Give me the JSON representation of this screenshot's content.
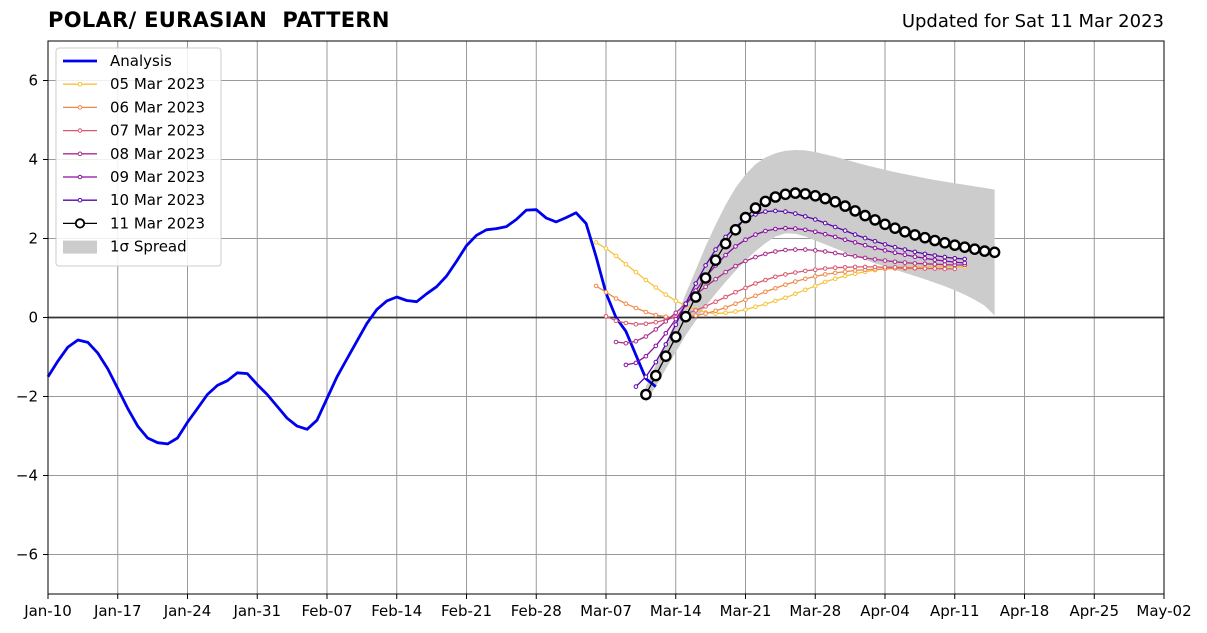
{
  "header": {
    "title": "POLAR/ EURASIAN  PATTERN",
    "updated": "Updated for Sat 11 Mar 2023"
  },
  "chart_data": {
    "type": "line",
    "title": "POLAR/ EURASIAN  PATTERN",
    "xlabel": "",
    "ylabel": "",
    "xlim": [
      "2023-01-10",
      "2023-05-02"
    ],
    "ylim": [
      -7,
      7
    ],
    "grid": true,
    "legend_position": "top-left",
    "x_ticks": [
      "Jan-10",
      "Jan-17",
      "Jan-24",
      "Jan-31",
      "Feb-07",
      "Feb-14",
      "Feb-21",
      "Feb-28",
      "Mar-07",
      "Mar-14",
      "Mar-21",
      "Mar-28",
      "Apr-04",
      "Apr-11",
      "Apr-18",
      "Apr-25",
      "May-02"
    ],
    "y_ticks": [
      "−6",
      "−4",
      "−2",
      "0",
      "2",
      "4",
      "6"
    ],
    "legend": [
      "Analysis",
      "05 Mar 2023",
      "06 Mar 2023",
      "07 Mar 2023",
      "08 Mar 2023",
      "09 Mar 2023",
      "10 Mar 2023",
      "11 Mar 2023",
      "1σ Spread"
    ],
    "series": [
      {
        "name": "Analysis",
        "color": "#0000ee",
        "start_date": "2023-01-10",
        "values": [
          -1.5,
          -1.1,
          -0.75,
          -0.57,
          -0.63,
          -0.9,
          -1.3,
          -1.8,
          -2.3,
          -2.75,
          -3.05,
          -3.17,
          -3.2,
          -3.05,
          -2.65,
          -2.3,
          -1.95,
          -1.72,
          -1.6,
          -1.4,
          -1.42,
          -1.7,
          -1.95,
          -2.25,
          -2.55,
          -2.75,
          -2.83,
          -2.6,
          -2.05,
          -1.5,
          -1.05,
          -0.6,
          -0.15,
          0.2,
          0.42,
          0.52,
          0.43,
          0.4,
          0.6,
          0.78,
          1.05,
          1.42,
          1.82,
          2.08,
          2.22,
          2.25,
          2.3,
          2.48,
          2.72,
          2.73,
          2.52,
          2.42,
          2.53,
          2.65,
          2.38,
          1.55,
          0.62,
          0.0,
          -0.35,
          -0.95,
          -1.55,
          -1.75
        ]
      },
      {
        "name": "05 Mar 2023",
        "color": "#f6c23a",
        "start_date": "2023-03-06",
        "values": [
          1.9,
          1.75,
          1.56,
          1.35,
          1.15,
          0.95,
          0.76,
          0.58,
          0.42,
          0.3,
          0.2,
          0.13,
          0.1,
          0.12,
          0.15,
          0.2,
          0.27,
          0.34,
          0.42,
          0.5,
          0.6,
          0.7,
          0.8,
          0.9,
          0.98,
          1.05,
          1.11,
          1.16,
          1.2,
          1.23,
          1.25,
          1.27,
          1.28,
          1.29,
          1.3,
          1.3,
          1.29,
          1.28
        ]
      },
      {
        "name": "06 Mar 2023",
        "color": "#f0894a",
        "start_date": "2023-03-06",
        "values": [
          0.8,
          0.64,
          0.48,
          0.35,
          0.24,
          0.14,
          0.06,
          0.02,
          0.0,
          0.02,
          0.05,
          0.1,
          0.17,
          0.25,
          0.35,
          0.45,
          0.55,
          0.65,
          0.74,
          0.83,
          0.91,
          0.98,
          1.04,
          1.09,
          1.13,
          1.16,
          1.19,
          1.21,
          1.22,
          1.23,
          1.24,
          1.24,
          1.24,
          1.24,
          1.24,
          1.24
        ]
      },
      {
        "name": "07 Mar 2023",
        "color": "#d9586e",
        "start_date": "2023-03-07",
        "values": [
          0.03,
          -0.08,
          -0.14,
          -0.17,
          -0.16,
          -0.12,
          -0.06,
          0.01,
          0.09,
          0.18,
          0.28,
          0.4,
          0.52,
          0.64,
          0.75,
          0.86,
          0.95,
          1.03,
          1.09,
          1.14,
          1.18,
          1.21,
          1.24,
          1.26,
          1.27,
          1.28,
          1.28,
          1.28,
          1.27,
          1.27,
          1.26,
          1.25,
          1.24,
          1.24,
          1.23,
          1.23
        ]
      },
      {
        "name": "08 Mar 2023",
        "color": "#a72e8c",
        "start_date": "2023-03-08",
        "values": [
          -0.62,
          -0.65,
          -0.6,
          -0.48,
          -0.3,
          -0.1,
          0.12,
          0.35,
          0.57,
          0.78,
          0.97,
          1.15,
          1.3,
          1.43,
          1.53,
          1.61,
          1.67,
          1.71,
          1.72,
          1.72,
          1.7,
          1.67,
          1.63,
          1.59,
          1.55,
          1.51,
          1.47,
          1.44,
          1.41,
          1.39,
          1.37,
          1.36,
          1.35,
          1.34,
          1.33,
          1.33
        ]
      },
      {
        "name": "09 Mar 2023",
        "color": "#8a0ea3",
        "start_date": "2023-03-09",
        "values": [
          -1.2,
          -1.15,
          -0.98,
          -0.72,
          -0.4,
          -0.04,
          0.32,
          0.68,
          1.02,
          1.32,
          1.58,
          1.8,
          1.97,
          2.1,
          2.19,
          2.24,
          2.26,
          2.25,
          2.22,
          2.17,
          2.11,
          2.04,
          1.97,
          1.9,
          1.83,
          1.76,
          1.7,
          1.64,
          1.59,
          1.54,
          1.5,
          1.46,
          1.43,
          1.4,
          1.38
        ]
      },
      {
        "name": "10 Mar 2023",
        "color": "#5a06a7",
        "start_date": "2023-03-10",
        "values": [
          -1.75,
          -1.5,
          -1.13,
          -0.68,
          -0.18,
          0.35,
          0.86,
          1.32,
          1.72,
          2.04,
          2.3,
          2.49,
          2.61,
          2.68,
          2.7,
          2.68,
          2.63,
          2.56,
          2.48,
          2.39,
          2.29,
          2.2,
          2.1,
          2.01,
          1.93,
          1.85,
          1.78,
          1.72,
          1.66,
          1.61,
          1.57,
          1.53,
          1.5,
          1.48
        ]
      },
      {
        "name": "11 Mar 2023",
        "color": "#000000",
        "start_date": "2023-03-11",
        "values": [
          -1.95,
          -1.47,
          -0.98,
          -0.49,
          0.02,
          0.52,
          1.0,
          1.45,
          1.87,
          2.22,
          2.53,
          2.77,
          2.94,
          3.05,
          3.12,
          3.15,
          3.13,
          3.08,
          3.01,
          2.93,
          2.82,
          2.7,
          2.58,
          2.47,
          2.36,
          2.26,
          2.17,
          2.09,
          2.02,
          1.95,
          1.89,
          1.83,
          1.78,
          1.73,
          1.68,
          1.65
        ]
      },
      {
        "name": "1σ Spread",
        "color": "#cccccc",
        "start_date": "2023-03-11",
        "upper": [
          -1.75,
          -1.2,
          -0.65,
          -0.05,
          0.6,
          1.2,
          1.8,
          2.35,
          2.85,
          3.28,
          3.62,
          3.88,
          4.05,
          4.16,
          4.22,
          4.24,
          4.23,
          4.19,
          4.13,
          4.07,
          4.0,
          3.93,
          3.86,
          3.8,
          3.74,
          3.68,
          3.63,
          3.58,
          3.53,
          3.48,
          3.44,
          3.4,
          3.36,
          3.32,
          3.28,
          3.24
        ],
        "lower": [
          -2.15,
          -1.75,
          -1.3,
          -0.88,
          -0.45,
          -0.08,
          0.28,
          0.6,
          0.9,
          1.18,
          1.44,
          1.68,
          1.88,
          2.05,
          2.13,
          2.12,
          2.05,
          1.95,
          1.85,
          1.75,
          1.65,
          1.55,
          1.46,
          1.37,
          1.29,
          1.21,
          1.13,
          1.05,
          0.97,
          0.88,
          0.79,
          0.69,
          0.58,
          0.45,
          0.3,
          0.05
        ]
      }
    ]
  }
}
